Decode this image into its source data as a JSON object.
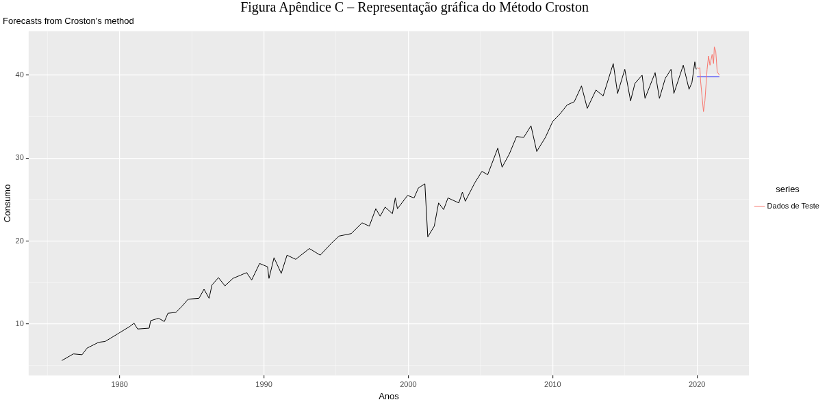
{
  "chart_data": {
    "type": "line",
    "title": "Figura Apêndice C – Representação gráfica do Método Croston",
    "subtitle": "Forecasts from Croston's method",
    "xlabel": "Anos",
    "ylabel": "Consumo",
    "legend_title": "series",
    "xlim": [
      1973.7,
      2023.6
    ],
    "ylim": [
      3.8,
      45.3
    ],
    "xticks": [
      {
        "value": 1975,
        "label": null
      },
      1980,
      {
        "value": 1985,
        "label": null
      },
      1990,
      {
        "value": 1995,
        "label": null
      },
      2000,
      {
        "value": 2005,
        "label": null
      },
      2010,
      {
        "value": 2015,
        "label": null
      },
      2020
    ],
    "yticks": [
      {
        "value": 5,
        "label": null
      },
      10,
      {
        "value": 15,
        "label": null
      },
      20,
      {
        "value": 25,
        "label": null
      },
      30,
      {
        "value": 35,
        "label": null
      },
      40
    ],
    "grid": true,
    "legend": "right",
    "marker": "none",
    "line_style": "solid",
    "series": [
      {
        "color": "#000000",
        "x": [
          1976.0,
          1976.8,
          1977.4,
          1977.75,
          1978.55,
          1979.0,
          1979.95,
          1980.7,
          1981.0,
          1981.25,
          1982.05,
          1982.15,
          1982.7,
          1983.1,
          1983.35,
          1983.9,
          1984.3,
          1984.75,
          1985.5,
          1985.85,
          1986.2,
          1986.4,
          1986.85,
          1987.3,
          1987.85,
          1988.4,
          1988.8,
          1989.15,
          1989.7,
          1990.25,
          1990.35,
          1990.7,
          1991.2,
          1991.6,
          1992.2,
          1993.15,
          1993.9,
          1994.65,
          1995.2,
          1996.05,
          1996.8,
          1997.3,
          1997.75,
          1998.05,
          1998.4,
          1998.9,
          1999.1,
          1999.25,
          1999.95,
          2000.4,
          2000.7,
          2001.15,
          2001.35,
          2001.8,
          2002.1,
          2002.45,
          2002.75,
          2003.5,
          2003.75,
          2003.95,
          2004.6,
          2005.1,
          2005.5,
          2006.2,
          2006.5,
          2007.0,
          2007.5,
          2008.0,
          2008.5,
          2008.9,
          2009.5,
          2010.0,
          2010.5,
          2011.0,
          2011.5,
          2012.0,
          2012.4,
          2013.0,
          2013.5,
          2014.2,
          2014.5,
          2015.0,
          2015.4,
          2015.7,
          2016.2,
          2016.4,
          2017.1,
          2017.4,
          2017.8,
          2018.2,
          2018.4,
          2019.05,
          2019.45,
          2019.65,
          2019.85,
          2019.95
        ],
        "values": [
          5.6,
          6.4,
          6.3,
          7.1,
          7.8,
          7.9,
          8.9,
          9.7,
          10.1,
          9.4,
          9.5,
          10.4,
          10.7,
          10.3,
          11.3,
          11.4,
          12.1,
          13.0,
          13.1,
          14.2,
          13.1,
          14.7,
          15.6,
          14.6,
          15.5,
          15.9,
          16.2,
          15.3,
          17.3,
          16.9,
          15.5,
          18.0,
          16.1,
          18.3,
          17.8,
          19.1,
          18.3,
          19.7,
          20.6,
          20.9,
          22.2,
          21.8,
          23.9,
          23.0,
          24.1,
          23.3,
          25.2,
          23.9,
          25.5,
          25.2,
          26.4,
          26.9,
          20.5,
          21.8,
          24.6,
          23.8,
          25.2,
          24.6,
          25.9,
          24.8,
          27.0,
          28.4,
          28.0,
          31.2,
          28.9,
          30.5,
          32.6,
          32.5,
          33.9,
          30.8,
          32.5,
          34.4,
          35.3,
          36.4,
          36.8,
          38.7,
          36.0,
          38.2,
          37.5,
          41.4,
          37.8,
          40.7,
          36.9,
          39.0,
          40.0,
          37.2,
          40.3,
          37.2,
          39.6,
          40.7,
          37.8,
          41.2,
          38.3,
          39.1,
          41.6,
          40.7
        ]
      },
      {
        "name": "Dados de Teste",
        "color": "#f8766d",
        "x": [
          2020.0,
          2020.1,
          2020.2,
          2020.25,
          2020.45,
          2020.55,
          2020.7,
          2020.8,
          2020.9,
          2021.05,
          2021.15,
          2021.2,
          2021.3,
          2021.4,
          2021.55
        ],
        "values": [
          40.9,
          40.8,
          40.9,
          39.3,
          35.6,
          36.9,
          40.7,
          42.3,
          41.2,
          42.5,
          41.4,
          43.4,
          42.9,
          40.4,
          40.0
        ]
      },
      {
        "color": "#0000ff",
        "x": [
          2020.0,
          2021.55
        ],
        "values": [
          39.8,
          39.8
        ]
      }
    ]
  }
}
